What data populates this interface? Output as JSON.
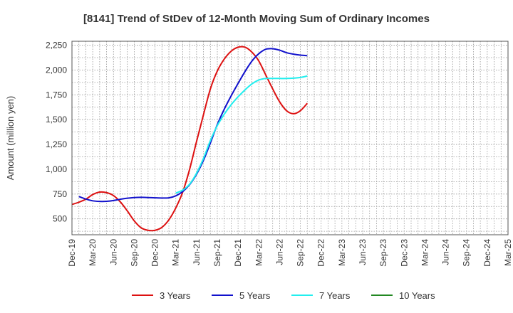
{
  "chart_data": {
    "type": "line",
    "title": "[8141]  Trend of StDev of 12-Month Moving Sum of Ordinary Incomes",
    "xlabel": "",
    "ylabel": "Amount (million yen)",
    "ylim": [
      340,
      2290
    ],
    "y_ticks": [
      500,
      750,
      1000,
      1250,
      1500,
      1750,
      2000,
      2250
    ],
    "y_tick_labels": [
      "500",
      "750",
      "1,000",
      "1,250",
      "1,500",
      "1,750",
      "2,000",
      "2,250"
    ],
    "x_tick_labels": [
      "Dec-19",
      "Mar-20",
      "Jun-20",
      "Sep-20",
      "Dec-20",
      "Mar-21",
      "Jun-21",
      "Sep-21",
      "Dec-21",
      "Mar-22",
      "Jun-22",
      "Sep-22",
      "Dec-22",
      "Mar-23",
      "Jun-23",
      "Sep-23",
      "Dec-23",
      "Mar-24",
      "Jun-24",
      "Sep-24",
      "Dec-24",
      "Mar-25"
    ],
    "series": [
      {
        "name": "3 Years",
        "color": "#dd1111",
        "values": [
          645,
          668,
          698,
          745,
          770,
          765,
          735,
          670,
          580,
          480,
          410,
          385,
          385,
          415,
          490,
          610,
          770,
          1000,
          1280,
          1550,
          1810,
          1990,
          2110,
          2190,
          2230,
          2230,
          2180,
          2090,
          1950,
          1810,
          1680,
          1590,
          1560,
          1590,
          1665
        ]
      },
      {
        "name": "5 Years",
        "color": "#1111cc",
        "values": [
          null,
          725,
          700,
          682,
          676,
          677,
          685,
          698,
          708,
          715,
          717,
          715,
          712,
          710,
          712,
          732,
          775,
          845,
          950,
          1090,
          1265,
          1450,
          1605,
          1740,
          1865,
          1985,
          2090,
          2165,
          2210,
          2215,
          2200,
          2175,
          2160,
          2150,
          2145
        ]
      },
      {
        "name": "7 Years",
        "color": "#22eeee",
        "values": [
          null,
          null,
          null,
          null,
          null,
          null,
          null,
          null,
          null,
          null,
          null,
          null,
          null,
          null,
          null,
          760,
          790,
          850,
          960,
          1110,
          1290,
          1440,
          1555,
          1650,
          1730,
          1800,
          1860,
          1900,
          1915,
          1915,
          1915,
          1915,
          1918,
          1925,
          1940
        ]
      },
      {
        "name": "10 Years",
        "color": "#228822",
        "values": []
      }
    ]
  }
}
